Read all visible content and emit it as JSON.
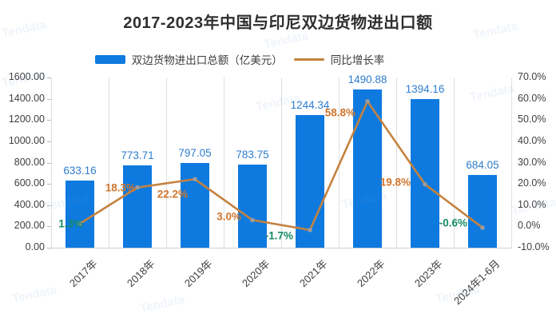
{
  "title": "2017-2023年中国与印尼双边货物进出口额",
  "legend": {
    "bars": "双边货物进出口总额（亿美元）",
    "line": "同比增长率"
  },
  "watermark": "Tendata",
  "colors": {
    "bar": "#0e7adf",
    "line": "#c4823f",
    "marker": "#9b9b9b",
    "bar_label": "#2e7ccd",
    "growth_pos": "#cf752e",
    "growth_neg": "#178a66",
    "axis_text": "#3f3f3f",
    "grid": "#dfdfdf",
    "title": "#2f2f2f"
  },
  "chart_data": {
    "type": "bar",
    "title": "2017-2023年中国与印尼双边货物进出口额",
    "categories": [
      "2017年",
      "2018年",
      "2019年",
      "2020年",
      "2021年",
      "2022年",
      "2023年",
      "2024年1-6月"
    ],
    "series": [
      {
        "name": "双边货物进出口总额（亿美元）",
        "type": "bar",
        "axis": "left",
        "values": [
          633.16,
          773.71,
          797.05,
          783.75,
          1244.34,
          1490.88,
          1394.16,
          684.05
        ],
        "value_labels": [
          "633.16",
          "773.71",
          "797.05",
          "783.75",
          "1244.34",
          "1490.88",
          "1394.16",
          "684.05"
        ]
      },
      {
        "name": "同比增长率",
        "type": "line",
        "axis": "right",
        "values": [
          1.3,
          18.3,
          22.2,
          3.0,
          -1.7,
          58.8,
          19.8,
          -0.6
        ],
        "value_labels": [
          "1.3%",
          "18.3%",
          "22.2%",
          "3.0%",
          "-1.7%",
          "58.8%",
          "19.8%",
          "-0.6%"
        ],
        "label_tone": [
          "neg",
          "pos",
          "pos",
          "pos",
          "neg",
          "pos",
          "pos",
          "neg"
        ]
      }
    ],
    "left_axis": {
      "min": 0,
      "max": 1600,
      "step": 200,
      "tick_labels": [
        "0.00",
        "200.00",
        "400.00",
        "600.00",
        "800.00",
        "1000.00",
        "1200.00",
        "1400.00",
        "1600.00"
      ]
    },
    "right_axis": {
      "min": -10,
      "max": 70,
      "step": 10,
      "tick_labels": [
        "-10.0%",
        "0.0%",
        "10.0%",
        "20.0%",
        "30.0%",
        "40.0%",
        "50.0%",
        "60.0%",
        "70.0%"
      ]
    },
    "legend_position": "top",
    "grid": "vertical-only"
  }
}
